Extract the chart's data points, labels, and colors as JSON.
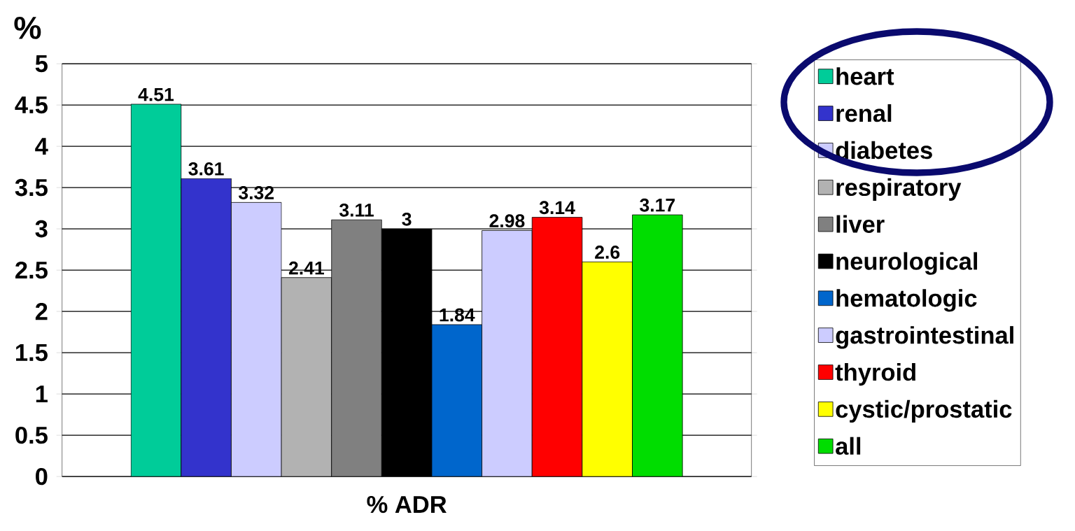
{
  "chart_data": {
    "type": "bar",
    "ylabel": "%",
    "categories": [
      "% ADR"
    ],
    "series": [
      {
        "name": "heart",
        "color": "#00cc99",
        "values": [
          4.51
        ]
      },
      {
        "name": "renal",
        "color": "#3333cc",
        "values": [
          3.61
        ]
      },
      {
        "name": "diabetes",
        "color": "#ccccff",
        "values": [
          3.32
        ]
      },
      {
        "name": "respiratory",
        "color": "#b2b2b2",
        "values": [
          2.41
        ]
      },
      {
        "name": "liver",
        "color": "#808080",
        "values": [
          3.11
        ]
      },
      {
        "name": "neurological",
        "color": "#000000",
        "values": [
          3
        ]
      },
      {
        "name": "hematologic",
        "color": "#0066cc",
        "values": [
          1.84
        ]
      },
      {
        "name": "gastrointestinal",
        "color": "#ccccff",
        "values": [
          2.98
        ]
      },
      {
        "name": "thyroid",
        "color": "#ff0000",
        "values": [
          3.14
        ]
      },
      {
        "name": "cystic/prostatic",
        "color": "#ffff00",
        "values": [
          2.6
        ]
      },
      {
        "name": "all",
        "color": "#00dd00",
        "values": [
          3.17
        ]
      }
    ],
    "ylim": [
      0,
      5
    ],
    "yticks": [
      0,
      0.5,
      1,
      1.5,
      2,
      2.5,
      3,
      3.5,
      4,
      4.5,
      5
    ],
    "grid": "y",
    "data_labels": true,
    "legend": "right"
  }
}
